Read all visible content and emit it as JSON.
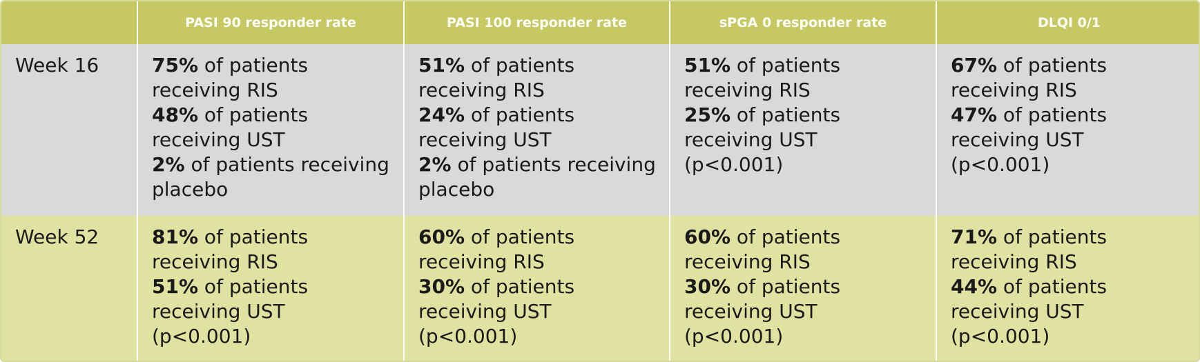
{
  "header": {
    "corner": "",
    "columns": [
      "PASI 90 responder rate",
      "PASI 100 responder rate",
      "sPGA 0 responder rate",
      "DLQI 0/1"
    ]
  },
  "rows": [
    {
      "label": "Week 16",
      "cells": [
        {
          "stats": [
            {
              "pct": "75%",
              "text": " of patients receiving RIS"
            },
            {
              "pct": "48%",
              "text": " of patients receiving UST"
            },
            {
              "pct": "2%",
              "text": " of patients receiving placebo"
            }
          ],
          "note": ""
        },
        {
          "stats": [
            {
              "pct": "51%",
              "text": " of patients receiving RIS"
            },
            {
              "pct": "24%",
              "text": " of patients receiving UST"
            },
            {
              "pct": "2%",
              "text": " of patients receiving placebo"
            }
          ],
          "note": ""
        },
        {
          "stats": [
            {
              "pct": "51%",
              "text": " of patients receiving RIS"
            },
            {
              "pct": "25%",
              "text": " of patients receiving UST"
            }
          ],
          "note": "(p<0.001)"
        },
        {
          "stats": [
            {
              "pct": "67%",
              "text": " of patients receiving RIS"
            },
            {
              "pct": "47%",
              "text": " of patients receiving UST"
            }
          ],
          "note": "(p<0.001)"
        }
      ]
    },
    {
      "label": "Week 52",
      "cells": [
        {
          "stats": [
            {
              "pct": "81%",
              "text": " of patients receiving RIS"
            },
            {
              "pct": "51%",
              "text": " of patients receiving UST"
            }
          ],
          "note": "(p<0.001)"
        },
        {
          "stats": [
            {
              "pct": "60%",
              "text": " of patients receiving RIS"
            },
            {
              "pct": "30%",
              "text": " of patients receiving UST"
            }
          ],
          "note": "(p<0.001)"
        },
        {
          "stats": [
            {
              "pct": "60%",
              "text": " of patients receiving RIS"
            },
            {
              "pct": "30%",
              "text": " of patients receiving UST"
            }
          ],
          "note": "(p<0.001)"
        },
        {
          "stats": [
            {
              "pct": "71%",
              "text": " of patients receiving RIS"
            },
            {
              "pct": "44%",
              "text": " of patients receiving UST"
            }
          ],
          "note": "(p<0.001)"
        }
      ]
    }
  ],
  "colors": {
    "header_bg": "#c6c961",
    "week16_bg": "#d9d9d9",
    "week52_bg": "#e0e2a1"
  }
}
